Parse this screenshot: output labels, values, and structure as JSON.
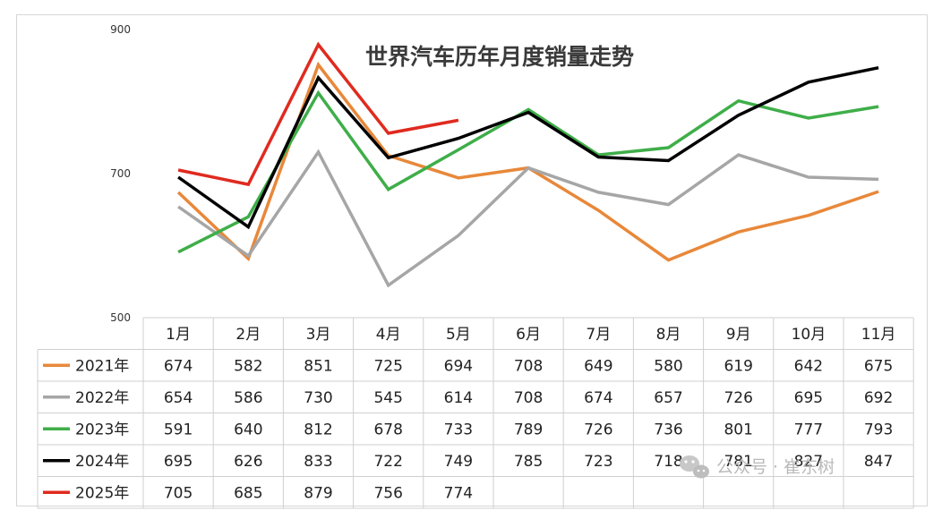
{
  "chart_data": {
    "type": "line",
    "title": "世界汽车历年月度销量走势",
    "categories": [
      "1月",
      "2月",
      "3月",
      "4月",
      "5月",
      "6月",
      "7月",
      "8月",
      "9月",
      "10月",
      "11月"
    ],
    "y_ticks": [
      "900",
      "700",
      "500"
    ],
    "ylim": [
      500,
      900
    ],
    "grid": false,
    "legend": "data-table-rows",
    "series": [
      {
        "name": "2021年",
        "color": "#e8883a",
        "values": [
          674,
          582,
          851,
          725,
          694,
          708,
          649,
          580,
          619,
          642,
          675
        ]
      },
      {
        "name": "2022年",
        "color": "#a6a6a6",
        "values": [
          654,
          586,
          730,
          545,
          614,
          708,
          674,
          657,
          726,
          695,
          692
        ]
      },
      {
        "name": "2023年",
        "color": "#3fae49",
        "values": [
          591,
          640,
          812,
          678,
          733,
          789,
          726,
          736,
          801,
          777,
          793
        ]
      },
      {
        "name": "2024年",
        "color": "#000000",
        "values": [
          695,
          626,
          833,
          722,
          749,
          785,
          723,
          718,
          781,
          827,
          847
        ]
      },
      {
        "name": "2025年",
        "color": "#e02a1f",
        "values": [
          705,
          685,
          879,
          756,
          774,
          null,
          null,
          null,
          null,
          null,
          null
        ]
      }
    ]
  },
  "watermark": {
    "icon": "wechat-icon",
    "text": "公众号 · 崔东树"
  }
}
